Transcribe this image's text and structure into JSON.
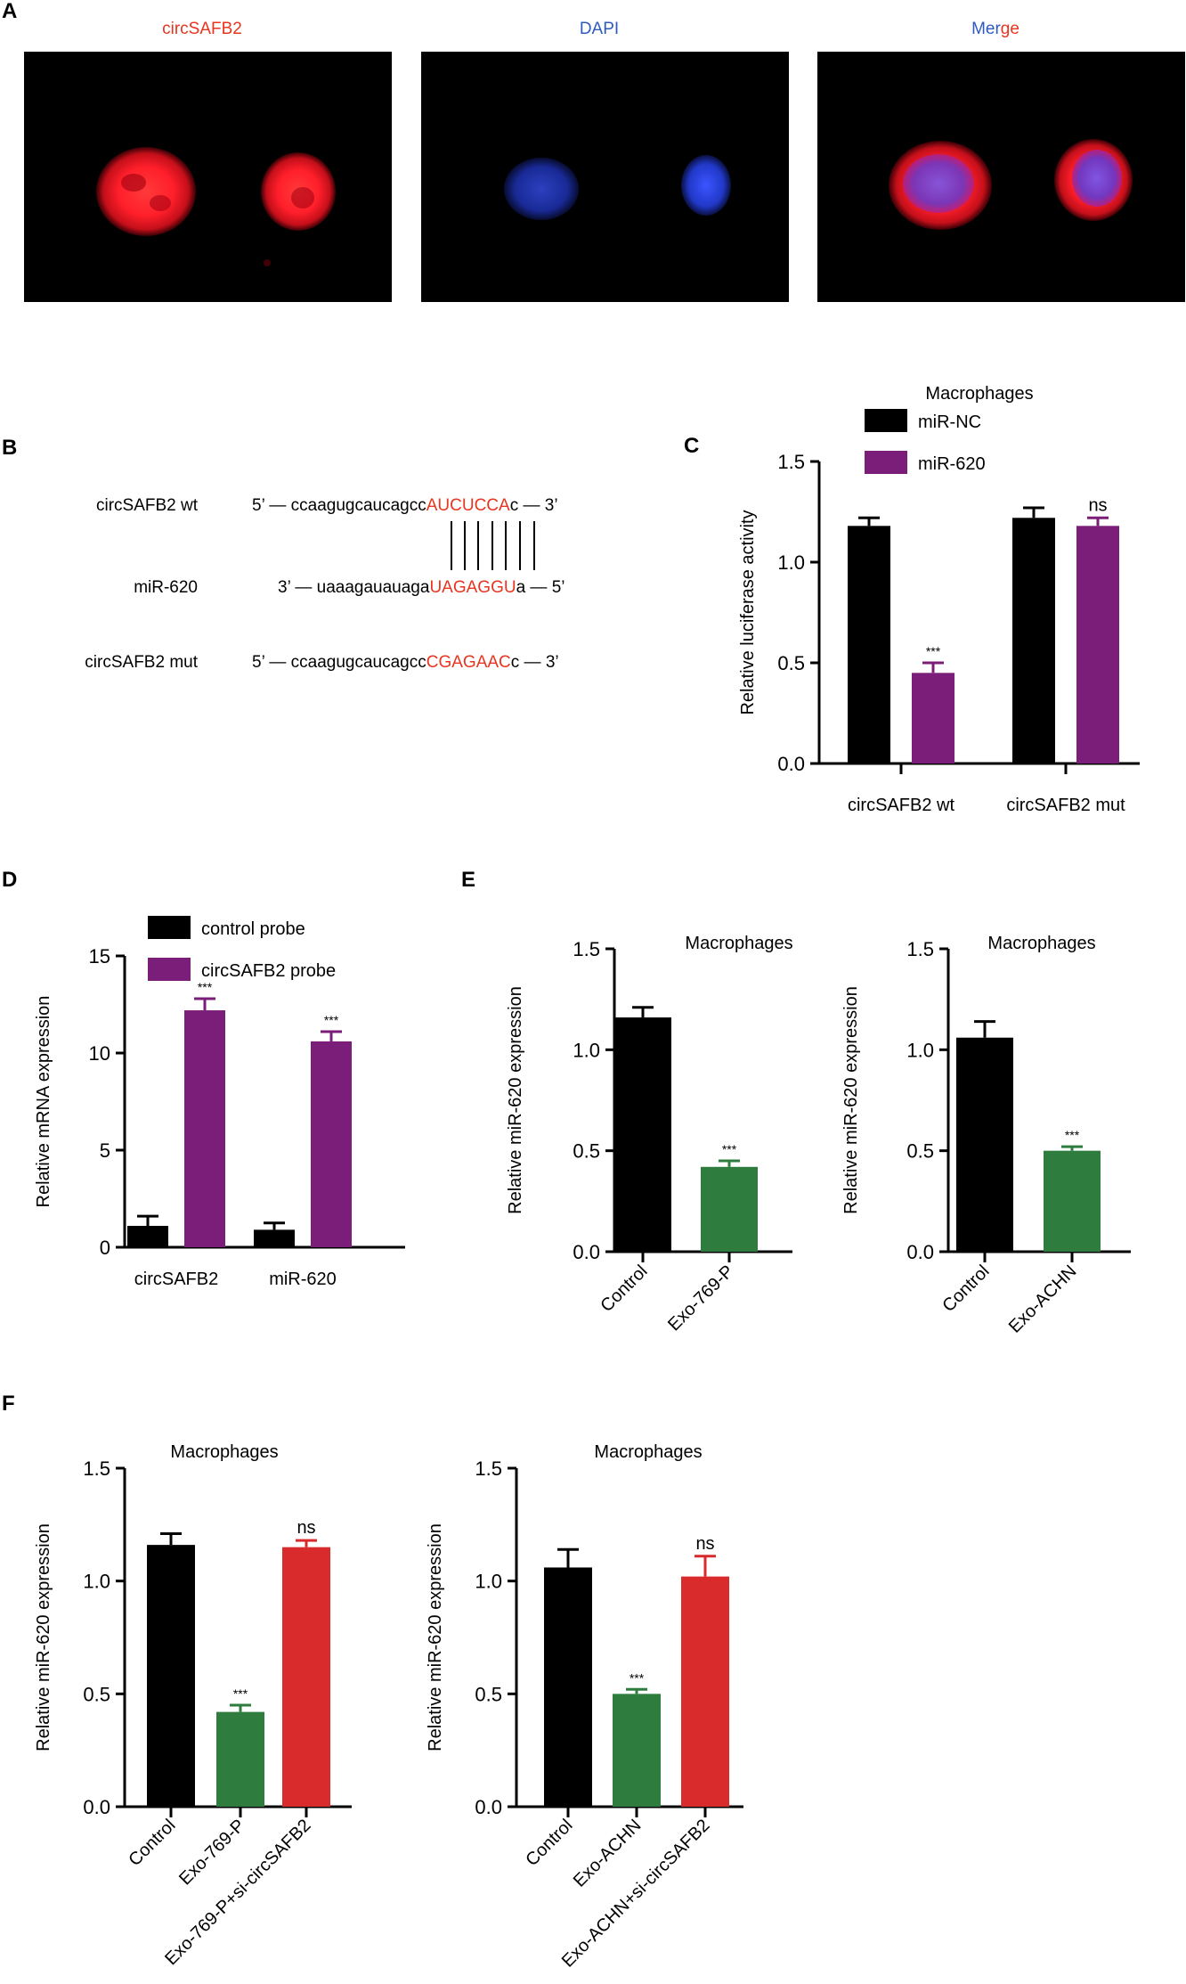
{
  "panels": {
    "a": "A",
    "b": "B",
    "c": "C",
    "d": "D",
    "e": "E",
    "f": "F"
  },
  "panel_a": {
    "titles": {
      "circ": "circSAFB2",
      "dapi": "DAPI",
      "merge_part1": "Mer",
      "merge_part2": "ge"
    },
    "colors": {
      "red": "#e8351f",
      "blue": "#2f5bbf",
      "cell_red": "#ff1f2a",
      "nucleus_blue": "#2a3fd8",
      "background": "#000000"
    },
    "image_description_names": [
      "circSAFB2-fluorescence-image",
      "dapi-fluorescence-image",
      "merge-fluorescence-image"
    ]
  },
  "panel_b": {
    "rows": [
      {
        "label": "circSAFB2 wt",
        "prefix": "5’ — ccaagugcaucagcc",
        "highlight": "AUCUCCA",
        "suffix": "c — 3’"
      },
      {
        "label": "miR-620",
        "prefix": "3’ — uaaagauauaga",
        "highlight": "UAGAGGU",
        "suffix": "a — 5’"
      },
      {
        "label": "circSAFB2 mut",
        "prefix": "5’ — ccaagugcaucagcc",
        "highlight": "CGAGAAC",
        "suffix": "c — 3’"
      }
    ],
    "highlight_color": "#e8351f"
  },
  "chart_data": [
    {
      "id": "C",
      "type": "bar",
      "title": "Macrophages",
      "ylabel": "Relative  luciferase activity",
      "ylim": [
        0,
        1.5
      ],
      "yticks": [
        "0.0",
        "0.5",
        "1.0",
        "1.5"
      ],
      "categories": [
        "circSAFB2 wt",
        "circSAFB2 mut"
      ],
      "series": [
        {
          "name": "miR-NC",
          "color": "#000000",
          "values": [
            1.18,
            1.22
          ],
          "errors": [
            0.04,
            0.05
          ],
          "sig": [
            "",
            ""
          ]
        },
        {
          "name": "miR-620",
          "color": "#7b1e7a",
          "values": [
            0.45,
            1.18
          ],
          "errors": [
            0.05,
            0.04
          ],
          "sig": [
            "***",
            "ns"
          ]
        }
      ]
    },
    {
      "id": "D",
      "type": "bar",
      "title": "",
      "ylabel": "Relative mRNA expression",
      "ylim": [
        0,
        15
      ],
      "yticks": [
        "0",
        "5",
        "10",
        "15"
      ],
      "categories": [
        "circSAFB2",
        "miR-620"
      ],
      "series": [
        {
          "name": "control probe",
          "color": "#000000",
          "values": [
            1.1,
            0.9
          ],
          "errors": [
            0.5,
            0.35
          ],
          "sig": [
            "",
            ""
          ]
        },
        {
          "name": "circSAFB2 probe",
          "color": "#7b1e7a",
          "values": [
            12.2,
            10.6
          ],
          "errors": [
            0.6,
            0.5
          ],
          "sig": [
            "***",
            "***"
          ]
        }
      ]
    },
    {
      "id": "E1",
      "type": "bar",
      "title": "Macrophages",
      "ylabel": "Relative miR-620 expression",
      "ylim": [
        0,
        1.5
      ],
      "yticks": [
        "0.0",
        "0.5",
        "1.0",
        "1.5"
      ],
      "categories": [
        "Control",
        "Exo-769-P"
      ],
      "values": [
        1.16,
        0.42
      ],
      "errors": [
        0.05,
        0.03
      ],
      "colors": [
        "#000000",
        "#2e7d3e"
      ],
      "sig": [
        "",
        "***"
      ]
    },
    {
      "id": "E2",
      "type": "bar",
      "title": "Macrophages",
      "ylabel": "Relative miR-620 expression",
      "ylim": [
        0,
        1.5
      ],
      "yticks": [
        "0.0",
        "0.5",
        "1.0",
        "1.5"
      ],
      "categories": [
        "Control",
        "Exo-ACHN"
      ],
      "values": [
        1.06,
        0.5
      ],
      "errors": [
        0.08,
        0.02
      ],
      "colors": [
        "#000000",
        "#2e7d3e"
      ],
      "sig": [
        "",
        "***"
      ]
    },
    {
      "id": "F1",
      "type": "bar",
      "title": "Macrophages",
      "ylabel": "Relative miR-620 expression",
      "ylim": [
        0,
        1.5
      ],
      "yticks": [
        "0.0",
        "0.5",
        "1.0",
        "1.5"
      ],
      "categories": [
        "Control",
        "Exo-769-P",
        "Exo-769-P+si-circSAFB2"
      ],
      "values": [
        1.16,
        0.42,
        1.15
      ],
      "errors": [
        0.05,
        0.03,
        0.03
      ],
      "colors": [
        "#000000",
        "#2e7d3e",
        "#d92b2b"
      ],
      "sig": [
        "",
        "***",
        "ns"
      ]
    },
    {
      "id": "F2",
      "type": "bar",
      "title": "Macrophages",
      "ylabel": "Relative miR-620 expression",
      "ylim": [
        0,
        1.5
      ],
      "yticks": [
        "0.0",
        "0.5",
        "1.0",
        "1.5"
      ],
      "categories": [
        "Control",
        "Exo-ACHN",
        "Exo-ACHN+si-circSAFB2"
      ],
      "values": [
        1.06,
        0.5,
        1.02
      ],
      "errors": [
        0.08,
        0.02,
        0.09
      ],
      "colors": [
        "#000000",
        "#2e7d3e",
        "#d92b2b"
      ],
      "sig": [
        "",
        "***",
        "ns"
      ]
    }
  ]
}
